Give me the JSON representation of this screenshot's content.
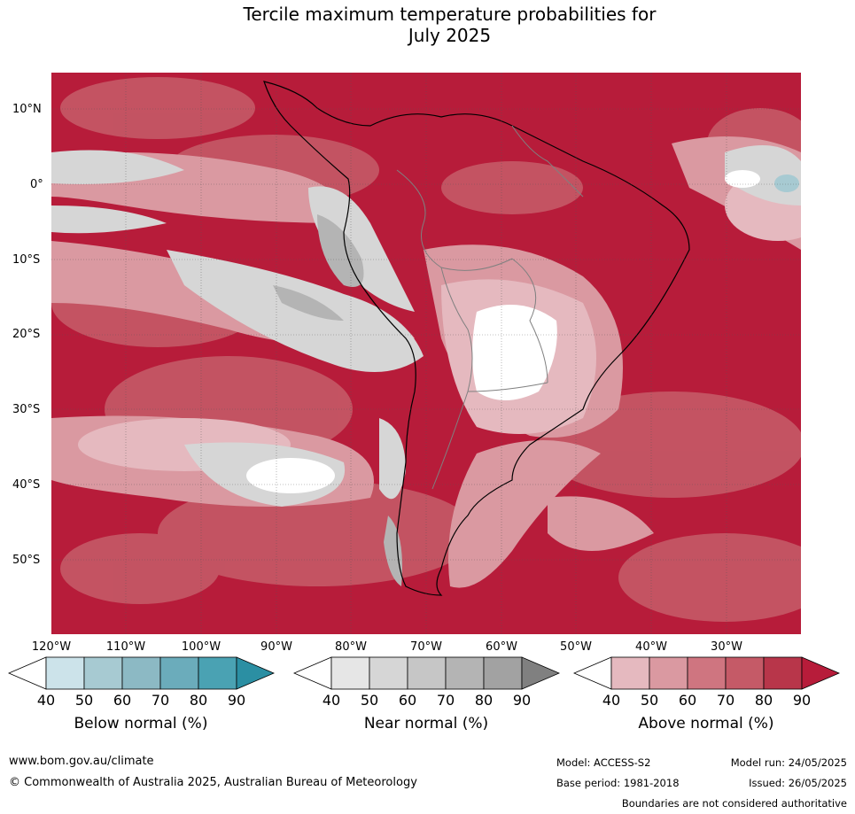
{
  "title_line1": "Tercile maximum temperature probabilities for",
  "title_line2": "July 2025",
  "latitudes": [
    "10°N",
    "0°",
    "10°S",
    "20°S",
    "30°S",
    "40°S",
    "50°S"
  ],
  "longitudes": [
    "120°W",
    "110°W",
    "100°W",
    "90°W",
    "80°W",
    "70°W",
    "60°W",
    "50°W",
    "40°W",
    "30°W"
  ],
  "colorbars": [
    {
      "label": "Below normal (%)",
      "ticks": [
        "40",
        "50",
        "60",
        "70",
        "80",
        "90"
      ],
      "colors": [
        "#ffffff",
        "#cce3ea",
        "#a7cad2",
        "#8cb9c4",
        "#6bacbb",
        "#4aa2b3",
        "#2b8fa3"
      ]
    },
    {
      "label": "Near normal (%)",
      "ticks": [
        "40",
        "50",
        "60",
        "70",
        "80",
        "90"
      ],
      "colors": [
        "#ffffff",
        "#e6e6e6",
        "#d6d6d6",
        "#c6c6c6",
        "#b4b4b4",
        "#a2a2a2",
        "#808080"
      ]
    },
    {
      "label": "Above normal (%)",
      "ticks": [
        "40",
        "50",
        "60",
        "70",
        "80",
        "90"
      ],
      "colors": [
        "#ffffff",
        "#e5b9bf",
        "#da99a1",
        "#cf7580",
        "#c55a67",
        "#b8364a",
        "#b71c3a"
      ]
    }
  ],
  "footer": {
    "website": "www.bom.gov.au/climate",
    "copyright": "© Commonwealth of Australia 2025, Australian Bureau of Meteorology",
    "model": "Model: ACCESS-S2",
    "base_period": "Base period: 1981-2018",
    "model_run": "Model run: 24/05/2025",
    "issued": "Issued: 26/05/2025",
    "disclaimer": "Boundaries are not considered authoritative"
  },
  "colors": {
    "above_high": "#b71c3a",
    "near": "#c0c0c0",
    "below": "#8cc3cf"
  }
}
